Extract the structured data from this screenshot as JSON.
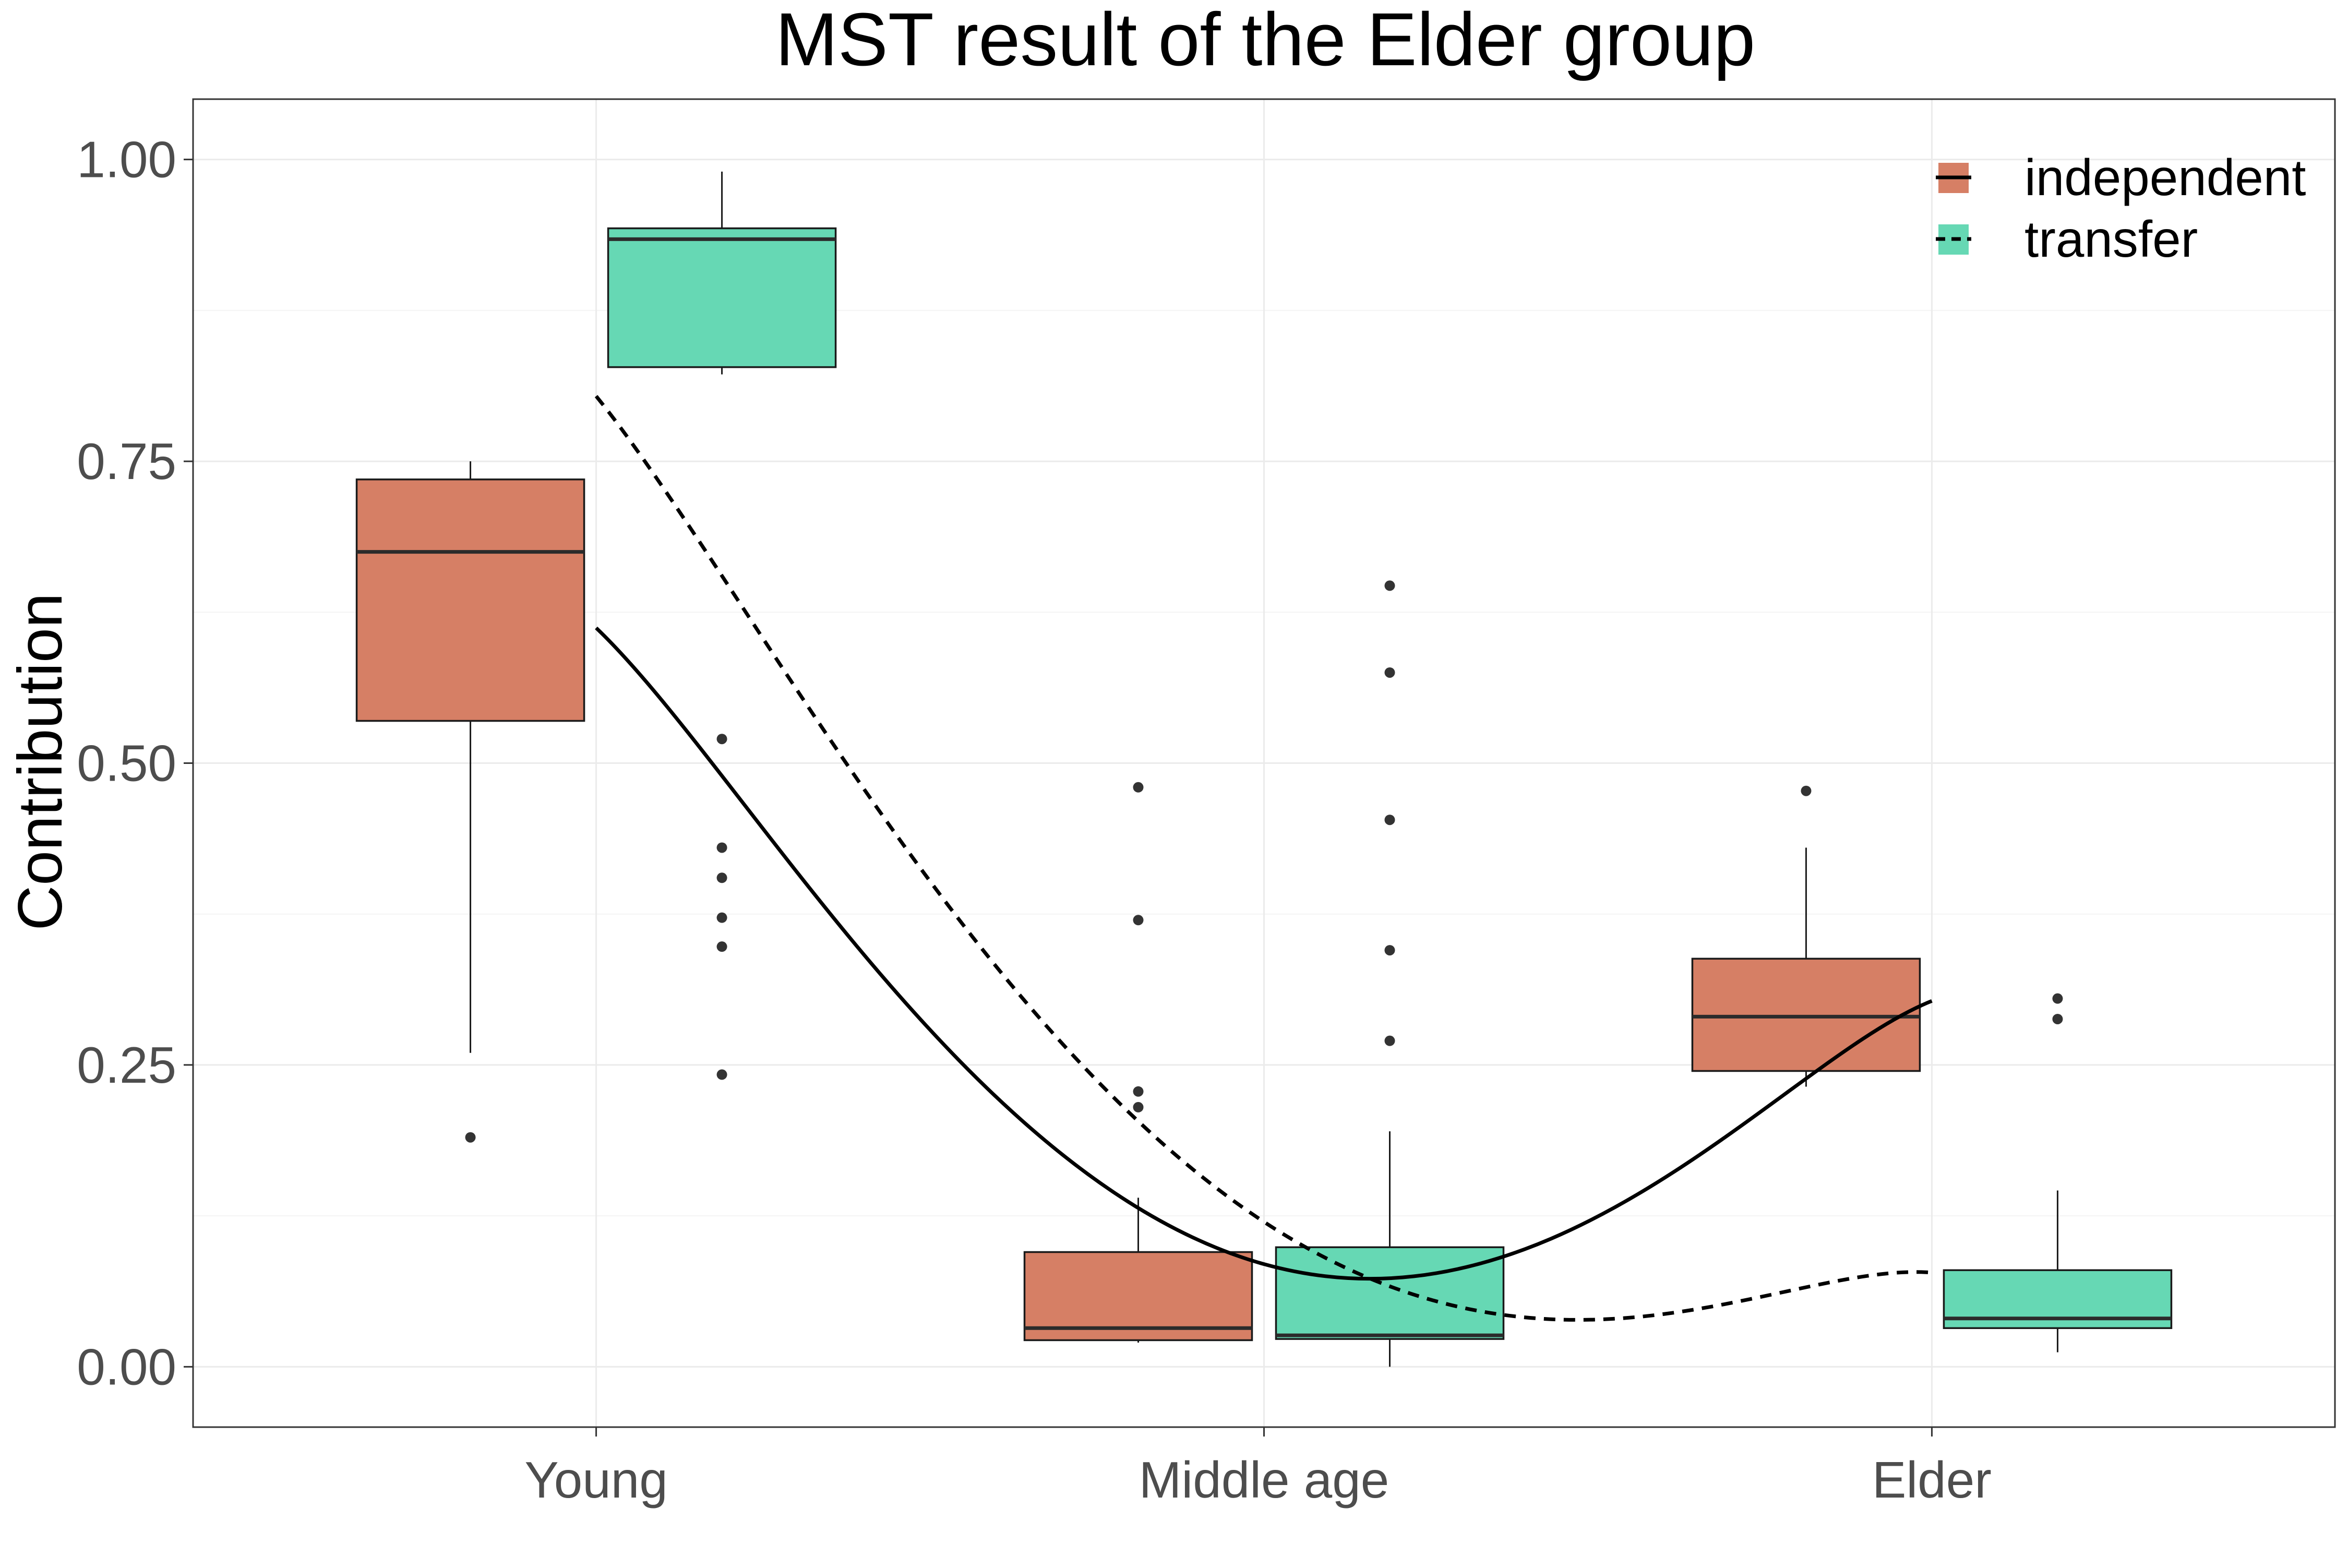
{
  "chart_data": {
    "type": "boxplot",
    "title": "MST result of the Elder group",
    "xlabel": "",
    "ylabel": "Contribution",
    "categories": [
      "Young",
      "Middle age",
      "Elder"
    ],
    "ylim": [
      -0.05,
      1.05
    ],
    "yticks": [
      0.0,
      0.25,
      0.5,
      0.75,
      1.0
    ],
    "ytick_labels": [
      "0.00",
      "0.25",
      "0.50",
      "0.75",
      "1.00"
    ],
    "grid": true,
    "legend_position": "top-right",
    "series": [
      {
        "name": "independent",
        "color": "#d67f65",
        "line_style": "solid",
        "boxes": [
          {
            "category": "Young",
            "whisker_low": 0.26,
            "q1": 0.535,
            "median": 0.675,
            "q3": 0.735,
            "whisker_high": 0.75,
            "outliers": [
              0.19
            ]
          },
          {
            "category": "Middle age",
            "whisker_low": 0.02,
            "q1": 0.022,
            "median": 0.032,
            "q3": 0.095,
            "whisker_high": 0.14,
            "outliers": [
              0.48,
              0.37,
              0.228,
              0.215
            ]
          },
          {
            "category": "Elder",
            "whisker_low": 0.232,
            "q1": 0.245,
            "median": 0.29,
            "q3": 0.338,
            "whisker_high": 0.43,
            "outliers": [
              0.477
            ]
          }
        ],
        "trend": [
          {
            "category": "Young",
            "value": 0.612
          },
          {
            "category": "Middle age",
            "value": 0.085
          },
          {
            "category": "Elder",
            "value": 0.303
          }
        ]
      },
      {
        "name": "transfer",
        "color": "#66d8b4",
        "line_style": "dashed",
        "boxes": [
          {
            "category": "Young",
            "whisker_low": 0.822,
            "q1": 0.828,
            "median": 0.934,
            "q3": 0.943,
            "whisker_high": 0.99,
            "outliers": [
              0.52,
              0.43,
              0.405,
              0.372,
              0.348,
              0.242
            ]
          },
          {
            "category": "Middle age",
            "whisker_low": 0.0,
            "q1": 0.023,
            "median": 0.026,
            "q3": 0.099,
            "whisker_high": 0.195,
            "outliers": [
              0.647,
              0.575,
              0.453,
              0.345,
              0.27
            ]
          },
          {
            "category": "Elder",
            "whisker_low": 0.012,
            "q1": 0.032,
            "median": 0.04,
            "q3": 0.08,
            "whisker_high": 0.146,
            "outliers": [
              0.305,
              0.288
            ]
          }
        ],
        "trend": [
          {
            "category": "Young",
            "value": 0.804
          },
          {
            "category": "Middle age",
            "value": 0.12
          },
          {
            "category": "Elder",
            "value": 0.078
          }
        ]
      }
    ]
  }
}
